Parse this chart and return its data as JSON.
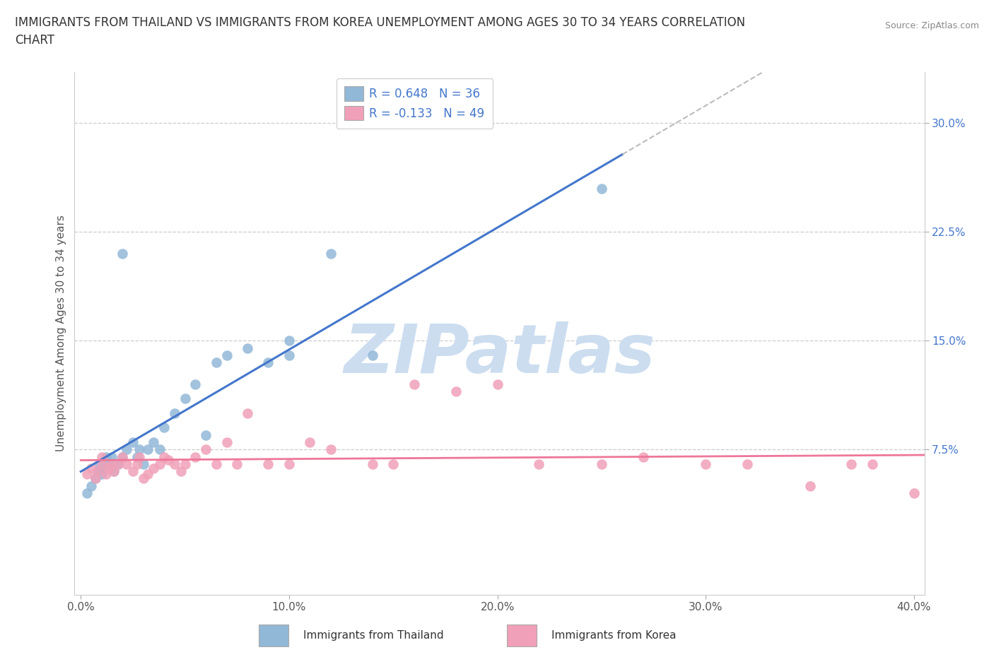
{
  "title_line1": "IMMIGRANTS FROM THAILAND VS IMMIGRANTS FROM KOREA UNEMPLOYMENT AMONG AGES 30 TO 34 YEARS CORRELATION",
  "title_line2": "CHART",
  "source": "Source: ZipAtlas.com",
  "ylabel": "Unemployment Among Ages 30 to 34 years",
  "xlim": [
    -0.003,
    0.405
  ],
  "ylim": [
    -0.025,
    0.335
  ],
  "x_ticks": [
    0.0,
    0.1,
    0.2,
    0.3,
    0.4
  ],
  "x_tick_labels": [
    "0.0%",
    "10.0%",
    "20.0%",
    "30.0%",
    "40.0%"
  ],
  "y_ticks": [
    0.075,
    0.15,
    0.225,
    0.3
  ],
  "y_tick_labels": [
    "7.5%",
    "15.0%",
    "22.5%",
    "30.0%"
  ],
  "grid_color": "#cccccc",
  "background_color": "#ffffff",
  "watermark": "ZIPatlas",
  "watermark_color": "#ccddf0",
  "thailand_color": "#92b8d8",
  "korea_color": "#f0a0b8",
  "thailand_line_color": "#4477cc",
  "korea_line_color": "#ee7799",
  "dashed_color": "#bbbbbb",
  "thailand_R": 0.648,
  "thailand_N": 36,
  "korea_R": -0.133,
  "korea_N": 49,
  "legend_label_thailand": "Immigrants from Thailand",
  "legend_label_korea": "Immigrants from Korea",
  "thailand_x": [
    0.003,
    0.005,
    0.007,
    0.008,
    0.009,
    0.01,
    0.01,
    0.012,
    0.013,
    0.015,
    0.016,
    0.018,
    0.02,
    0.022,
    0.025,
    0.027,
    0.028,
    0.03,
    0.032,
    0.035,
    0.038,
    0.04,
    0.045,
    0.05,
    0.055,
    0.06,
    0.065,
    0.07,
    0.08,
    0.09,
    0.1,
    0.1,
    0.12,
    0.14,
    0.02,
    0.25
  ],
  "thailand_y": [
    0.045,
    0.05,
    0.055,
    0.06,
    0.065,
    0.058,
    0.062,
    0.07,
    0.065,
    0.07,
    0.06,
    0.065,
    0.07,
    0.075,
    0.08,
    0.07,
    0.075,
    0.065,
    0.075,
    0.08,
    0.075,
    0.09,
    0.1,
    0.11,
    0.12,
    0.085,
    0.135,
    0.14,
    0.145,
    0.135,
    0.14,
    0.15,
    0.21,
    0.14,
    0.21,
    0.255
  ],
  "korea_x": [
    0.003,
    0.005,
    0.007,
    0.008,
    0.01,
    0.01,
    0.012,
    0.013,
    0.015,
    0.016,
    0.018,
    0.02,
    0.022,
    0.025,
    0.027,
    0.028,
    0.03,
    0.032,
    0.035,
    0.038,
    0.04,
    0.042,
    0.045,
    0.048,
    0.05,
    0.055,
    0.06,
    0.065,
    0.07,
    0.075,
    0.08,
    0.09,
    0.1,
    0.11,
    0.12,
    0.14,
    0.15,
    0.16,
    0.18,
    0.2,
    0.22,
    0.25,
    0.27,
    0.3,
    0.32,
    0.35,
    0.37,
    0.38,
    0.4
  ],
  "korea_y": [
    0.058,
    0.062,
    0.055,
    0.06,
    0.065,
    0.07,
    0.058,
    0.062,
    0.065,
    0.06,
    0.065,
    0.07,
    0.065,
    0.06,
    0.065,
    0.07,
    0.055,
    0.058,
    0.062,
    0.065,
    0.07,
    0.068,
    0.065,
    0.06,
    0.065,
    0.07,
    0.075,
    0.065,
    0.08,
    0.065,
    0.1,
    0.065,
    0.065,
    0.08,
    0.075,
    0.065,
    0.065,
    0.12,
    0.115,
    0.12,
    0.065,
    0.065,
    0.07,
    0.065,
    0.065,
    0.05,
    0.065,
    0.065,
    0.045
  ],
  "trendline_x_start": 0.0,
  "trendline_x_solid_end": 0.26,
  "trendline_x_dashed_end": 0.405
}
